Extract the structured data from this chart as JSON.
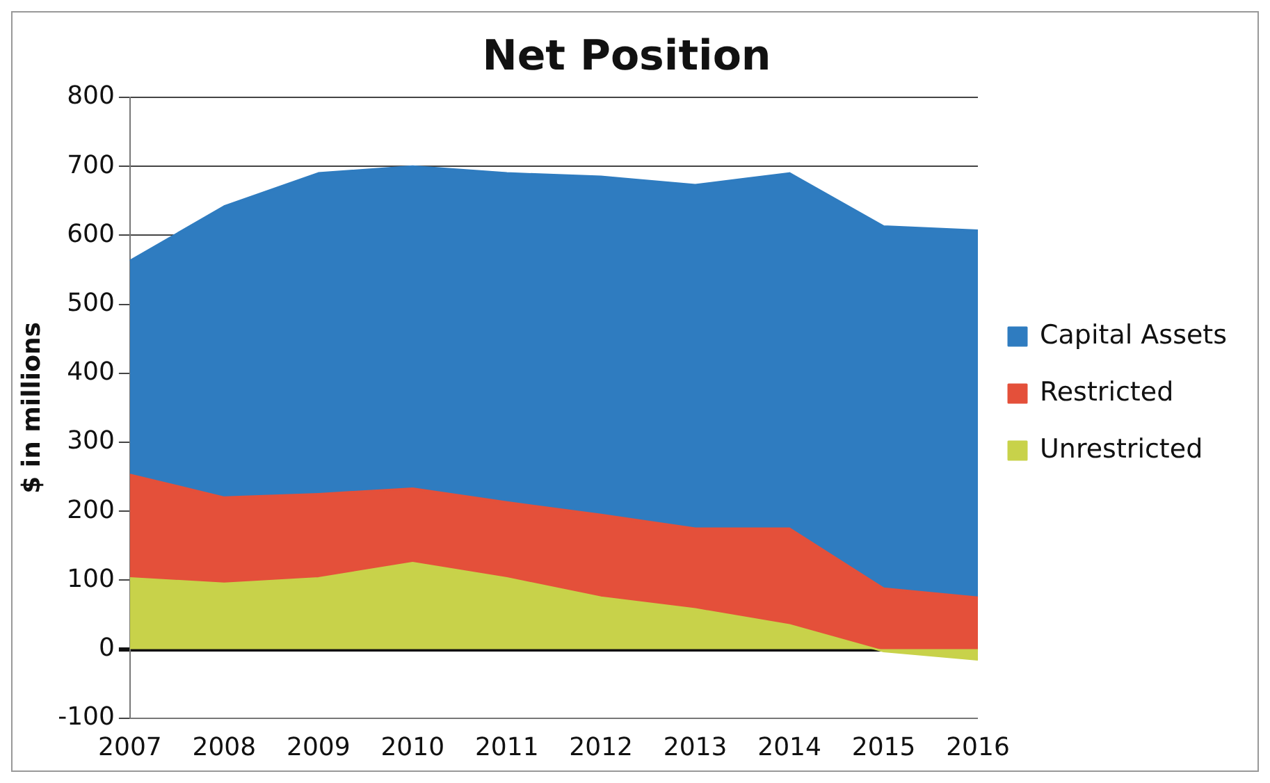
{
  "chart_data": {
    "type": "area",
    "title": "Net Position",
    "ylabel": "$ in millions",
    "stacked": true,
    "categories": [
      "2007",
      "2008",
      "2009",
      "2010",
      "2011",
      "2012",
      "2013",
      "2014",
      "2015",
      "2016"
    ],
    "series": [
      {
        "name": "Unrestricted",
        "color": "#c8d24a",
        "values": [
          103,
          95,
          103,
          125,
          103,
          75,
          58,
          35,
          -3,
          -15
        ]
      },
      {
        "name": "Restricted",
        "color": "#e4503a",
        "values": [
          150,
          125,
          122,
          108,
          110,
          120,
          117,
          140,
          91,
          90
        ]
      },
      {
        "name": "Capital Assets",
        "color": "#2f7cc0",
        "values": [
          310,
          422,
          465,
          467,
          477,
          490,
          498,
          515,
          525,
          532
        ]
      }
    ],
    "ylim": [
      -100,
      800
    ],
    "yticks": [
      -100,
      0,
      100,
      200,
      300,
      400,
      500,
      600,
      700,
      800
    ],
    "grid": "y",
    "legend": "right",
    "marker": "none"
  }
}
